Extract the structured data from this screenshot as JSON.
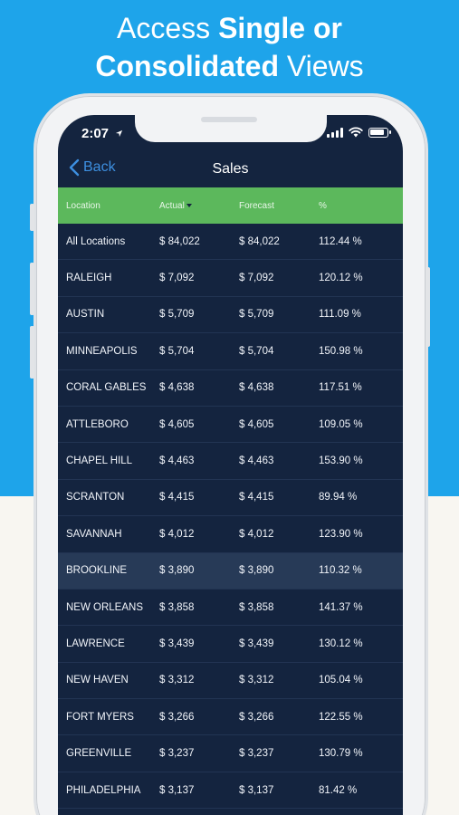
{
  "headline": {
    "line1_normal": "Access ",
    "line1_bold": "Single or",
    "line2_bold": "Consolidated",
    "line2_normal": " Views"
  },
  "status_bar": {
    "time": "2:07",
    "location_arrow": "location-arrow-icon"
  },
  "navbar": {
    "back_label": "Back",
    "title": "Sales"
  },
  "table": {
    "columns": [
      "Location",
      "Actual",
      "Forecast",
      "%"
    ],
    "sorted_column": "Actual",
    "rows": [
      {
        "location": "All Locations",
        "actual": "$ 84,022",
        "forecast": "$ 84,022",
        "pct": "112.44 %"
      },
      {
        "location": "RALEIGH",
        "actual": "$ 7,092",
        "forecast": "$ 7,092",
        "pct": "120.12 %"
      },
      {
        "location": "AUSTIN",
        "actual": "$ 5,709",
        "forecast": "$ 5,709",
        "pct": "111.09 %"
      },
      {
        "location": "MINNEAPOLIS",
        "actual": "$ 5,704",
        "forecast": "$ 5,704",
        "pct": "150.98 %"
      },
      {
        "location": "CORAL GABLES",
        "actual": "$ 4,638",
        "forecast": "$ 4,638",
        "pct": "117.51 %"
      },
      {
        "location": "ATTLEBORO",
        "actual": "$ 4,605",
        "forecast": "$ 4,605",
        "pct": "109.05 %"
      },
      {
        "location": "CHAPEL HILL",
        "actual": "$ 4,463",
        "forecast": "$ 4,463",
        "pct": "153.90 %"
      },
      {
        "location": "SCRANTON",
        "actual": "$ 4,415",
        "forecast": "$ 4,415",
        "pct": "89.94 %"
      },
      {
        "location": "SAVANNAH",
        "actual": "$ 4,012",
        "forecast": "$ 4,012",
        "pct": "123.90 %"
      },
      {
        "location": "BROOKLINE",
        "actual": "$ 3,890",
        "forecast": "$ 3,890",
        "pct": "110.32 %"
      },
      {
        "location": "NEW ORLEANS",
        "actual": "$ 3,858",
        "forecast": "$ 3,858",
        "pct": "141.37 %"
      },
      {
        "location": "LAWRENCE",
        "actual": "$ 3,439",
        "forecast": "$ 3,439",
        "pct": "130.12 %"
      },
      {
        "location": "NEW HAVEN",
        "actual": "$ 3,312",
        "forecast": "$ 3,312",
        "pct": "105.04 %"
      },
      {
        "location": "FORT MYERS",
        "actual": "$ 3,266",
        "forecast": "$ 3,266",
        "pct": "122.55 %"
      },
      {
        "location": "GREENVILLE",
        "actual": "$ 3,237",
        "forecast": "$ 3,237",
        "pct": "130.79 %"
      },
      {
        "location": "PHILADELPHIA",
        "actual": "$ 3,137",
        "forecast": "$ 3,137",
        "pct": "81.42 %"
      }
    ],
    "highlighted_row": "BROOKLINE"
  },
  "colors": {
    "background_top": "#1ea4ea",
    "background_bottom": "#f8f6f1",
    "screen": "#14243f",
    "header_green": "#5cb85c",
    "accent_blue": "#3d8fe0",
    "highlight_row": "#273a57"
  }
}
